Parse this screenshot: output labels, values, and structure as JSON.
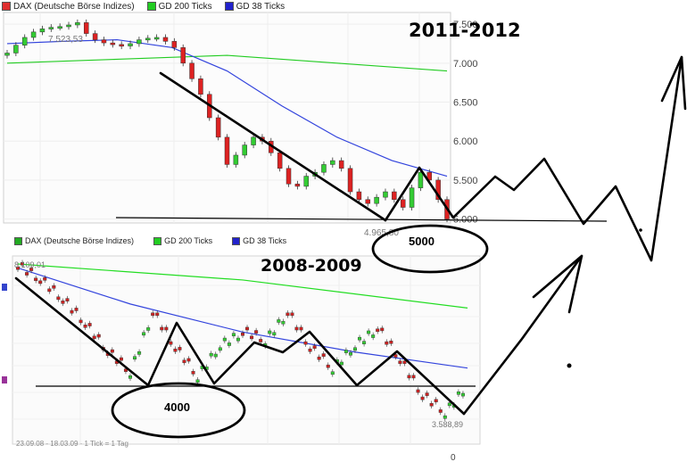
{
  "top_chart": {
    "legend": [
      {
        "label": "DAX (Deutsche Börse Indizes)",
        "color": "#e03030"
      },
      {
        "label": "GD 200 Ticks",
        "color": "#22cc22"
      },
      {
        "label": "GD 38 Ticks",
        "color": "#2222cc"
      }
    ],
    "period_label": "2011-2012",
    "high_label": "7.523,53",
    "low_label": "4.965,80",
    "oval_label": "5000"
  },
  "bottom_chart": {
    "legend": [
      {
        "label": "DAX (Deutsche Börse Indizes)",
        "color": "#e03030"
      },
      {
        "label": "GD 200 Ticks",
        "color": "#22cc22"
      },
      {
        "label": "GD 38 Ticks",
        "color": "#2222cc"
      }
    ],
    "period_label": "2008-2009",
    "high_label": "8.109,01",
    "low_label": "3.588,89",
    "oval_label": "4000",
    "footer_label": "23.09.08 - 18.03.09 · 1 Tick = 1 Tag",
    "axis_zero": "0"
  },
  "chart_data": [
    {
      "type": "line",
      "title": "2011-2012",
      "yticks": [
        "7.500",
        "7.000",
        "6.500",
        "6.000",
        "5.500",
        "5.000"
      ],
      "ylim": [
        4950,
        7650
      ],
      "grid": true,
      "legend_position": "top-left",
      "series": [
        {
          "name": "DAX (Deutsche Börse Indizes)",
          "x": [
            0,
            4,
            8,
            12,
            16,
            20,
            24,
            28,
            32,
            36,
            40,
            44,
            48,
            52,
            56,
            60,
            64,
            68,
            72,
            76,
            80,
            84,
            88,
            92,
            96,
            100,
            104,
            108,
            112,
            116,
            120,
            124,
            128,
            132,
            136,
            140,
            144,
            148,
            152,
            156,
            160,
            164,
            168,
            172,
            176,
            180,
            184,
            188,
            192,
            196,
            200
          ],
          "values": [
            7130,
            7230,
            7330,
            7400,
            7440,
            7460,
            7470,
            7490,
            7520,
            7380,
            7300,
            7260,
            7240,
            7220,
            7250,
            7300,
            7320,
            7330,
            7280,
            7200,
            7000,
            6800,
            6600,
            6300,
            6050,
            5700,
            5820,
            5950,
            6050,
            6000,
            5850,
            5650,
            5450,
            5420,
            5550,
            5600,
            5700,
            5750,
            5650,
            5350,
            5250,
            5200,
            5280,
            5350,
            5250,
            5150,
            5400,
            5600,
            5500,
            5250,
            5000
          ]
        },
        {
          "name": "GD 200 Ticks",
          "x": [
            0,
            50,
            100,
            150,
            200
          ],
          "values": [
            7000,
            7050,
            7100,
            7000,
            6900
          ]
        },
        {
          "name": "GD 38 Ticks",
          "x": [
            0,
            25,
            50,
            75,
            100,
            125,
            150,
            175,
            200
          ],
          "values": [
            7250,
            7280,
            7300,
            7200,
            6900,
            6450,
            6050,
            5750,
            5550
          ]
        }
      ]
    },
    {
      "type": "line",
      "title": "2008-2009",
      "ylim": [
        3500,
        8200
      ],
      "grid": true,
      "legend_position": "top-left",
      "series": [
        {
          "name": "DAX (Deutsche Börse Indizes)",
          "x": [
            0,
            10,
            20,
            30,
            40,
            50,
            60,
            70,
            80,
            90,
            100,
            110,
            120,
            130,
            140,
            150,
            160,
            170,
            180,
            190,
            200
          ],
          "values": [
            7950,
            7600,
            7100,
            6500,
            5800,
            5300,
            6800,
            5900,
            5200,
            6000,
            6300,
            6100,
            6800,
            5900,
            5400,
            6000,
            6400,
            5600,
            4700,
            4300,
            5000
          ]
        },
        {
          "name": "GD 200 Ticks",
          "x": [
            0,
            100,
            200
          ],
          "values": [
            8000,
            7600,
            6900
          ]
        },
        {
          "name": "GD 38 Ticks",
          "x": [
            0,
            50,
            100,
            150,
            200
          ],
          "values": [
            7900,
            7000,
            6300,
            5800,
            5400
          ]
        }
      ]
    }
  ]
}
